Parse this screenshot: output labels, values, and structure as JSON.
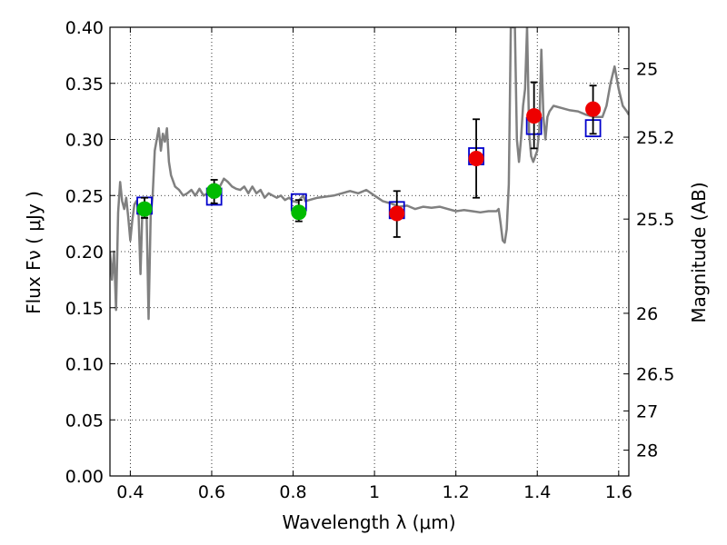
{
  "chart_data": {
    "type": "scatter",
    "xlabel": "Wavelength  λ (μm)",
    "ylabel": "Flux  Fν  ( μJy )",
    "y2label": "Magnitude (AB)",
    "xlim": [
      0.35,
      1.625
    ],
    "ylim": [
      0.0,
      0.4
    ],
    "grid": true,
    "grid_style": "dotted",
    "x_ticks": [
      0.4,
      0.6,
      0.8,
      1.0,
      1.2,
      1.4,
      1.6
    ],
    "x_tick_labels": [
      "0.4",
      "0.6",
      "0.8",
      "1",
      "1.2",
      "1.4",
      "1.6"
    ],
    "y_ticks": [
      0.0,
      0.05,
      0.1,
      0.15,
      0.2,
      0.25,
      0.3,
      0.35,
      0.4
    ],
    "y_tick_labels": [
      "0.00",
      "0.05",
      "0.10",
      "0.15",
      "0.20",
      "0.25",
      "0.30",
      "0.35",
      "0.40"
    ],
    "y2_ticks": [
      {
        "label": "25",
        "flux": 0.363
      },
      {
        "label": "25.2",
        "flux": 0.302
      },
      {
        "label": "25.5",
        "flux": 0.229
      },
      {
        "label": "26",
        "flux": 0.145
      },
      {
        "label": "26.5",
        "flux": 0.091
      },
      {
        "label": "27",
        "flux": 0.058
      },
      {
        "label": "28",
        "flux": 0.023
      }
    ],
    "series": [
      {
        "kind": "model-spectrum",
        "color": "#808080",
        "x": [
          0.35,
          0.355,
          0.36,
          0.365,
          0.37,
          0.375,
          0.38,
          0.385,
          0.39,
          0.395,
          0.4,
          0.405,
          0.41,
          0.415,
          0.42,
          0.425,
          0.43,
          0.435,
          0.44,
          0.445,
          0.45,
          0.455,
          0.46,
          0.465,
          0.47,
          0.475,
          0.48,
          0.485,
          0.49,
          0.495,
          0.5,
          0.51,
          0.52,
          0.53,
          0.54,
          0.55,
          0.56,
          0.57,
          0.58,
          0.59,
          0.6,
          0.61,
          0.62,
          0.63,
          0.64,
          0.65,
          0.66,
          0.67,
          0.68,
          0.69,
          0.7,
          0.71,
          0.72,
          0.73,
          0.74,
          0.75,
          0.76,
          0.77,
          0.78,
          0.79,
          0.8,
          0.81,
          0.815,
          0.82,
          0.825,
          0.83,
          0.84,
          0.86,
          0.88,
          0.9,
          0.92,
          0.94,
          0.96,
          0.98,
          1.0,
          1.02,
          1.04,
          1.06,
          1.08,
          1.1,
          1.12,
          1.14,
          1.16,
          1.18,
          1.2,
          1.22,
          1.24,
          1.26,
          1.28,
          1.3,
          1.305,
          1.31,
          1.315,
          1.32,
          1.325,
          1.33,
          1.335,
          1.34,
          1.345,
          1.35,
          1.355,
          1.36,
          1.365,
          1.37,
          1.375,
          1.38,
          1.385,
          1.39,
          1.395,
          1.4,
          1.405,
          1.41,
          1.415,
          1.42,
          1.425,
          1.43,
          1.44,
          1.46,
          1.48,
          1.5,
          1.52,
          1.54,
          1.56,
          1.57,
          1.58,
          1.59,
          1.6,
          1.61,
          1.62,
          1.625
        ],
        "y": [
          0.2,
          0.175,
          0.2,
          0.148,
          0.235,
          0.262,
          0.245,
          0.238,
          0.248,
          0.23,
          0.21,
          0.228,
          0.242,
          0.245,
          0.238,
          0.18,
          0.24,
          0.232,
          0.235,
          0.14,
          0.232,
          0.25,
          0.29,
          0.3,
          0.31,
          0.29,
          0.305,
          0.298,
          0.31,
          0.28,
          0.268,
          0.258,
          0.255,
          0.25,
          0.252,
          0.255,
          0.25,
          0.256,
          0.25,
          0.252,
          0.255,
          0.26,
          0.258,
          0.265,
          0.262,
          0.258,
          0.256,
          0.255,
          0.258,
          0.252,
          0.258,
          0.252,
          0.255,
          0.248,
          0.252,
          0.25,
          0.248,
          0.25,
          0.246,
          0.248,
          0.245,
          0.244,
          0.246,
          0.248,
          0.25,
          0.245,
          0.246,
          0.248,
          0.249,
          0.25,
          0.252,
          0.254,
          0.252,
          0.255,
          0.25,
          0.245,
          0.243,
          0.24,
          0.241,
          0.238,
          0.24,
          0.239,
          0.24,
          0.238,
          0.236,
          0.237,
          0.236,
          0.235,
          0.236,
          0.236,
          0.238,
          0.225,
          0.21,
          0.208,
          0.22,
          0.26,
          0.4,
          0.4,
          0.4,
          0.3,
          0.28,
          0.3,
          0.33,
          0.345,
          0.4,
          0.305,
          0.285,
          0.28,
          0.285,
          0.29,
          0.31,
          0.38,
          0.32,
          0.3,
          0.32,
          0.325,
          0.33,
          0.328,
          0.326,
          0.325,
          0.322,
          0.32,
          0.32,
          0.33,
          0.35,
          0.365,
          0.345,
          0.33,
          0.325,
          0.322
        ]
      },
      {
        "kind": "model-bandpass-flux",
        "name": "",
        "color": "#0000cc",
        "marker": "open-square",
        "x": [
          0.435,
          0.606,
          0.814,
          1.055,
          1.25,
          1.392,
          1.537
        ],
        "y": [
          0.241,
          0.249,
          0.244,
          0.237,
          0.285,
          0.312,
          0.31
        ]
      },
      {
        "kind": "observed-optical",
        "color": "#00bb00",
        "marker": "filled-circle",
        "x": [
          0.435,
          0.606,
          0.814
        ],
        "y": [
          0.238,
          0.254,
          0.235
        ],
        "err_low": [
          0.23,
          0.243,
          0.227
        ],
        "err_high": [
          0.248,
          0.264,
          0.246
        ]
      },
      {
        "kind": "observed-infrared",
        "color": "#ee0000",
        "marker": "filled-circle",
        "x": [
          1.055,
          1.25,
          1.392,
          1.537
        ],
        "y": [
          0.234,
          0.283,
          0.321,
          0.327
        ],
        "err_low": [
          0.213,
          0.248,
          0.292,
          0.305
        ],
        "err_high": [
          0.254,
          0.318,
          0.351,
          0.348
        ]
      }
    ]
  }
}
